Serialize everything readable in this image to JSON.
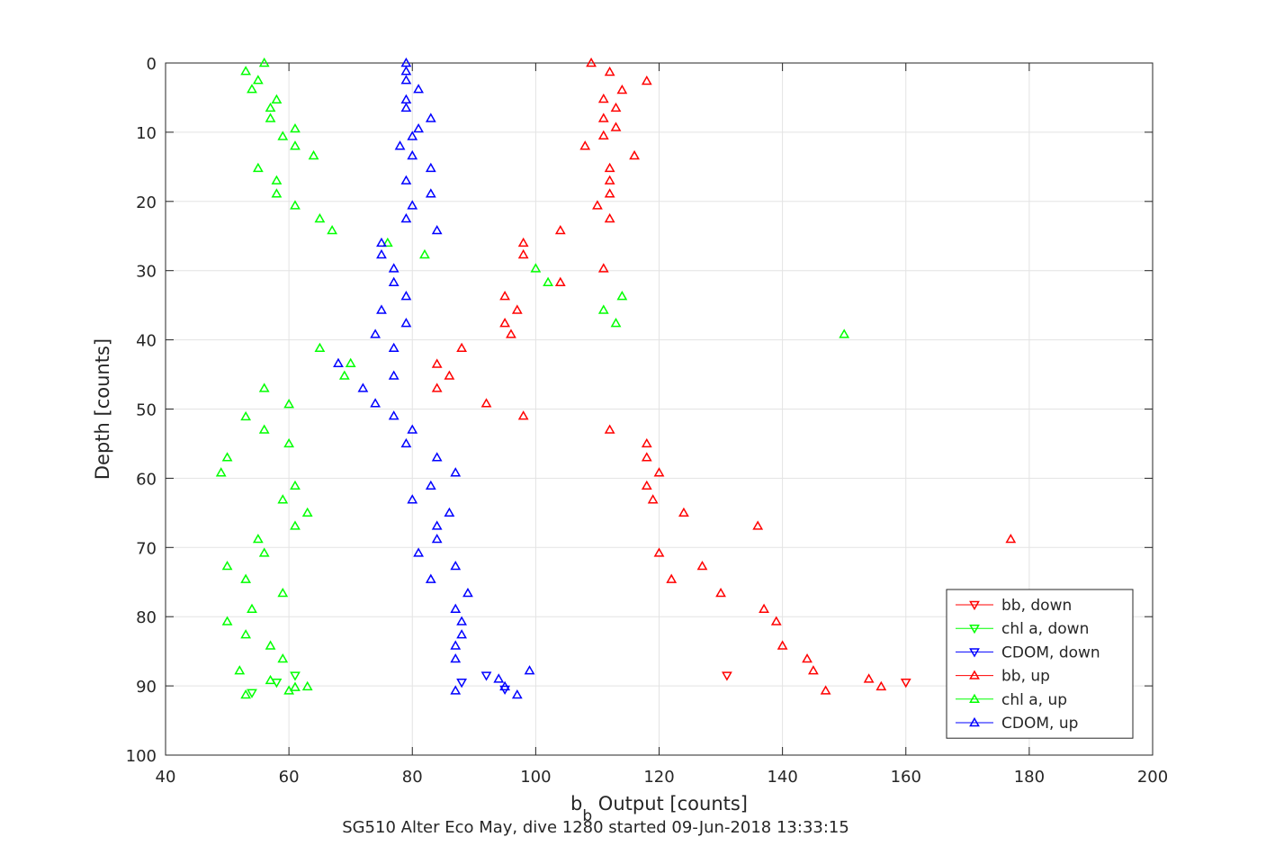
{
  "chart_data": {
    "type": "scatter",
    "xlabel": "b",
    "xlabel_subscript": "b",
    "xlabel_suffix": " Output [counts]",
    "ylabel": "Depth [counts]",
    "footer": "SG510 Alter Eco May, dive 1280 started 09-Jun-2018 13:33:15",
    "xlim": [
      40,
      200
    ],
    "ylim": [
      0,
      100
    ],
    "y_reversed": true,
    "grid": true,
    "legend_position": "bottom-right",
    "x_ticks": [
      "40",
      "60",
      "80",
      "100",
      "120",
      "140",
      "160",
      "180",
      "200"
    ],
    "y_ticks": [
      "0",
      "10",
      "20",
      "30",
      "40",
      "50",
      "60",
      "70",
      "80",
      "90",
      "100"
    ],
    "series": [
      {
        "name": "bb, down",
        "color": "#ff0000",
        "marker": "triangle-down",
        "points": [
          [
            131,
            88.5
          ],
          [
            160,
            89.5
          ]
        ]
      },
      {
        "name": "chl a, down",
        "color": "#00ff00",
        "marker": "triangle-down",
        "points": [
          [
            61,
            88.5
          ],
          [
            58,
            89.5
          ],
          [
            54,
            91
          ]
        ]
      },
      {
        "name": "CDOM, down",
        "color": "#0000ff",
        "marker": "triangle-down",
        "points": [
          [
            92,
            88.5
          ],
          [
            88,
            89.5
          ],
          [
            95,
            90.5
          ]
        ]
      },
      {
        "name": "bb, up",
        "color": "#ff0000",
        "marker": "triangle-up",
        "points": [
          [
            109,
            0
          ],
          [
            112,
            1.3
          ],
          [
            118,
            2.6
          ],
          [
            114,
            3.9
          ],
          [
            111,
            5.2
          ],
          [
            113,
            6.5
          ],
          [
            111,
            8
          ],
          [
            113,
            9.3
          ],
          [
            111,
            10.5
          ],
          [
            108,
            12
          ],
          [
            116,
            13.4
          ],
          [
            112,
            15.2
          ],
          [
            112,
            17
          ],
          [
            112,
            18.9
          ],
          [
            110,
            20.6
          ],
          [
            112,
            22.5
          ],
          [
            104,
            24.2
          ],
          [
            98,
            26
          ],
          [
            98,
            27.7
          ],
          [
            111,
            29.7
          ],
          [
            104,
            31.7
          ],
          [
            95,
            33.7
          ],
          [
            97,
            35.7
          ],
          [
            95,
            37.6
          ],
          [
            96,
            39.2
          ],
          [
            88,
            41.2
          ],
          [
            84,
            43.5
          ],
          [
            86,
            45.2
          ],
          [
            84,
            47
          ],
          [
            92,
            49.2
          ],
          [
            98,
            51
          ],
          [
            112,
            53
          ],
          [
            118,
            55
          ],
          [
            118,
            57
          ],
          [
            120,
            59.2
          ],
          [
            118,
            61.1
          ],
          [
            119,
            63.1
          ],
          [
            124,
            65
          ],
          [
            136,
            66.9
          ],
          [
            177,
            68.8
          ],
          [
            120,
            70.8
          ],
          [
            127,
            72.7
          ],
          [
            122,
            74.6
          ],
          [
            130,
            76.6
          ],
          [
            137,
            78.9
          ],
          [
            139,
            80.7
          ],
          [
            140,
            84.2
          ],
          [
            144,
            86.1
          ],
          [
            145,
            87.8
          ],
          [
            154,
            89
          ],
          [
            156,
            90.1
          ],
          [
            147,
            90.7
          ]
        ]
      },
      {
        "name": "chl a, up",
        "color": "#00ff00",
        "marker": "triangle-up",
        "points": [
          [
            56,
            0
          ],
          [
            53,
            1.2
          ],
          [
            55,
            2.5
          ],
          [
            54,
            3.8
          ],
          [
            58,
            5.3
          ],
          [
            57,
            6.5
          ],
          [
            57,
            8
          ],
          [
            61,
            9.5
          ],
          [
            59,
            10.6
          ],
          [
            61,
            12
          ],
          [
            64,
            13.4
          ],
          [
            55,
            15.2
          ],
          [
            58,
            17
          ],
          [
            58,
            18.9
          ],
          [
            61,
            20.6
          ],
          [
            65,
            22.5
          ],
          [
            67,
            24.2
          ],
          [
            76,
            26
          ],
          [
            82,
            27.7
          ],
          [
            100,
            29.7
          ],
          [
            102,
            31.7
          ],
          [
            114,
            33.7
          ],
          [
            111,
            35.7
          ],
          [
            113,
            37.6
          ],
          [
            150,
            39.2
          ],
          [
            65,
            41.2
          ],
          [
            70,
            43.4
          ],
          [
            69,
            45.2
          ],
          [
            56,
            47
          ],
          [
            60,
            49.3
          ],
          [
            53,
            51.1
          ],
          [
            56,
            53
          ],
          [
            60,
            55
          ],
          [
            50,
            57
          ],
          [
            49,
            59.2
          ],
          [
            61,
            61.1
          ],
          [
            59,
            63.1
          ],
          [
            63,
            65
          ],
          [
            61,
            66.9
          ],
          [
            55,
            68.8
          ],
          [
            56,
            70.8
          ],
          [
            50,
            72.7
          ],
          [
            53,
            74.6
          ],
          [
            59,
            76.6
          ],
          [
            54,
            78.9
          ],
          [
            50,
            80.7
          ],
          [
            53,
            82.6
          ],
          [
            57,
            84.2
          ],
          [
            59,
            86.1
          ],
          [
            52,
            87.8
          ],
          [
            57,
            89.2
          ],
          [
            63,
            90.1
          ],
          [
            61,
            90.2
          ],
          [
            60,
            90.7
          ],
          [
            53,
            91.3
          ]
        ]
      },
      {
        "name": "CDOM, up",
        "color": "#0000ff",
        "marker": "triangle-up",
        "points": [
          [
            79,
            0
          ],
          [
            79,
            1.2
          ],
          [
            79,
            2.5
          ],
          [
            81,
            3.8
          ],
          [
            79,
            5.3
          ],
          [
            79,
            6.5
          ],
          [
            83,
            8
          ],
          [
            81,
            9.5
          ],
          [
            80,
            10.6
          ],
          [
            78,
            12
          ],
          [
            80,
            13.4
          ],
          [
            83,
            15.2
          ],
          [
            79,
            17
          ],
          [
            83,
            18.9
          ],
          [
            80,
            20.6
          ],
          [
            79,
            22.5
          ],
          [
            84,
            24.2
          ],
          [
            75,
            26
          ],
          [
            75,
            27.7
          ],
          [
            77,
            29.7
          ],
          [
            77,
            31.7
          ],
          [
            79,
            33.7
          ],
          [
            75,
            35.7
          ],
          [
            79,
            37.6
          ],
          [
            74,
            39.2
          ],
          [
            77,
            41.2
          ],
          [
            68,
            43.4
          ],
          [
            77,
            45.2
          ],
          [
            72,
            47
          ],
          [
            74,
            49.2
          ],
          [
            77,
            51
          ],
          [
            80,
            53
          ],
          [
            79,
            55
          ],
          [
            84,
            57
          ],
          [
            87,
            59.2
          ],
          [
            83,
            61.1
          ],
          [
            80,
            63.1
          ],
          [
            86,
            65
          ],
          [
            84,
            66.9
          ],
          [
            84,
            68.8
          ],
          [
            81,
            70.8
          ],
          [
            87,
            72.7
          ],
          [
            83,
            74.6
          ],
          [
            89,
            76.6
          ],
          [
            87,
            78.9
          ],
          [
            88,
            80.7
          ],
          [
            88,
            82.6
          ],
          [
            87,
            84.2
          ],
          [
            87,
            86.1
          ],
          [
            99,
            87.8
          ],
          [
            94,
            89
          ],
          [
            95,
            90.1
          ],
          [
            97,
            91.3
          ],
          [
            87,
            90.7
          ]
        ]
      }
    ]
  }
}
